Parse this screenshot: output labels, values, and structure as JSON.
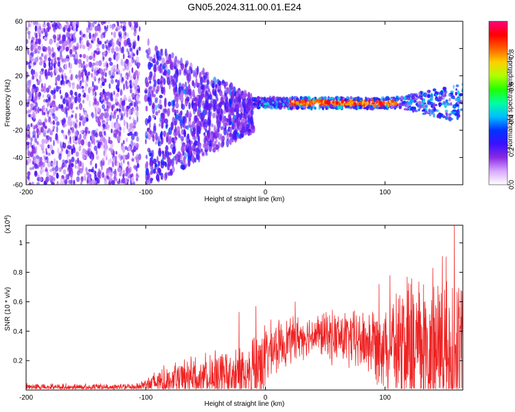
{
  "chart_data": [
    {
      "type": "heatmap",
      "title": "GN05.2024.311.00.01.E24",
      "xlabel": "Height of straight line (km)",
      "ylabel": "Frequency (Hz)",
      "xlim": [
        -200,
        165
      ],
      "ylim": [
        -60,
        60
      ],
      "x_ticks": [
        "-200",
        "-100",
        "0",
        "100"
      ],
      "y_ticks": [
        "-60",
        "-40",
        "-20",
        "0",
        "20",
        "40",
        "60"
      ],
      "colorbar": {
        "label": "Normalized spectral amplitude",
        "range": [
          0,
          1
        ],
        "ticks": [
          "0.0",
          "0.2",
          "0.4",
          "0.6",
          "0.8"
        ],
        "colors": [
          "#ffffff",
          "#d8a8ff",
          "#8a2be2",
          "#3a10ff",
          "#0033ff",
          "#00bfff",
          "#00ffa0",
          "#20ff00",
          "#b0ff00",
          "#ffd000",
          "#ff6000",
          "#ff0000",
          "#ff0080"
        ]
      },
      "features": {
        "broadband_noise_region_km": [
          -200,
          -105
        ],
        "converging_band_region_km": [
          -100,
          -10
        ],
        "narrow_line_region_km": [
          -10,
          165
        ],
        "line_frequency_hz": 0
      }
    },
    {
      "type": "line",
      "xlabel": "Height of straight line (km)",
      "ylabel": "SNR (10 * v/v)",
      "y_multiplier": "(x10",
      "y_multiplier_exp": "4",
      "xlim": [
        -200,
        165
      ],
      "ylim": [
        0,
        1.12
      ],
      "x_ticks": [
        "-200",
        "-100",
        "0",
        "100"
      ],
      "y_ticks": [
        "0.2",
        "0.4",
        "0.6",
        "0.8",
        "1"
      ],
      "series": [
        {
          "color": "#ee2222",
          "envelope": [
            {
              "x": -200,
              "base": 0.02,
              "amp": 0.03
            },
            {
              "x": -110,
              "base": 0.02,
              "amp": 0.03
            },
            {
              "x": -100,
              "base": 0.04,
              "amp": 0.05
            },
            {
              "x": -90,
              "base": 0.05,
              "amp": 0.12
            },
            {
              "x": -70,
              "base": 0.07,
              "amp": 0.15
            },
            {
              "x": -50,
              "base": 0.09,
              "amp": 0.18
            },
            {
              "x": -30,
              "base": 0.1,
              "amp": 0.2
            },
            {
              "x": -15,
              "base": 0.11,
              "amp": 0.25
            },
            {
              "x": -5,
              "base": 0.18,
              "amp": 0.32
            },
            {
              "x": 5,
              "base": 0.27,
              "amp": 0.22
            },
            {
              "x": 20,
              "base": 0.34,
              "amp": 0.18
            },
            {
              "x": 40,
              "base": 0.38,
              "amp": 0.16
            },
            {
              "x": 60,
              "base": 0.36,
              "amp": 0.22
            },
            {
              "x": 80,
              "base": 0.33,
              "amp": 0.25
            },
            {
              "x": 100,
              "base": 0.32,
              "amp": 0.35
            },
            {
              "x": 120,
              "base": 0.28,
              "amp": 0.55
            },
            {
              "x": 140,
              "base": 0.28,
              "amp": 0.65
            },
            {
              "x": 165,
              "base": 0.26,
              "amp": 0.7
            }
          ],
          "peaks": [
            {
              "x": 140,
              "y": 0.83
            },
            {
              "x": 148,
              "y": 0.91
            },
            {
              "x": 158,
              "y": 1.12
            },
            {
              "x": 104,
              "y": 0.78
            },
            {
              "x": 95,
              "y": 0.72
            },
            {
              "x": -22,
              "y": 0.53
            },
            {
              "x": -8,
              "y": 0.57
            },
            {
              "x": 25,
              "y": 0.6
            }
          ]
        }
      ]
    }
  ]
}
